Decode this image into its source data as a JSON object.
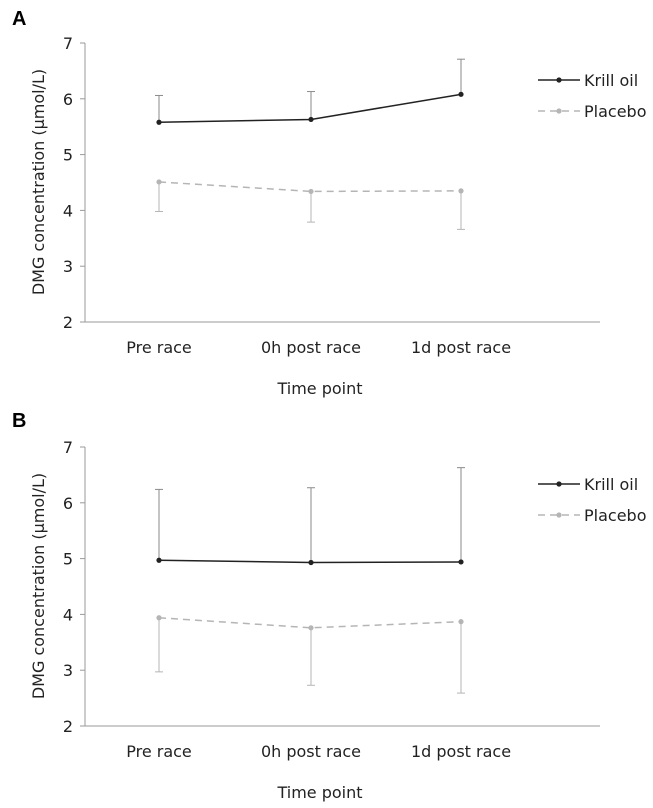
{
  "chart_data": [
    {
      "type": "line",
      "panel_label": "A",
      "categories": [
        "Pre race",
        "0h post race",
        "1d post race"
      ],
      "xlabel": "Time point",
      "ylabel": "DMG concentration (µmol/L)",
      "ylim": [
        2,
        7
      ],
      "yticks": [
        "2",
        "3",
        "4",
        "5",
        "6",
        "7"
      ],
      "legend_position": "top-right",
      "series": [
        {
          "name": "Krill oil",
          "color": "#222222",
          "dash": "solid",
          "values": [
            5.58,
            5.63,
            6.08
          ],
          "err_upper": [
            0.48,
            0.5,
            0.63
          ]
        },
        {
          "name": "Placebo",
          "color": "#b5b5b5",
          "dash": "dashed",
          "values": [
            4.51,
            4.34,
            4.35
          ],
          "err_lower": [
            0.53,
            0.55,
            0.69
          ]
        }
      ]
    },
    {
      "type": "line",
      "panel_label": "B",
      "categories": [
        "Pre race",
        "0h post race",
        "1d post race"
      ],
      "xlabel": "Time point",
      "ylabel": "DMG concentration (µmol/L)",
      "ylim": [
        2,
        7
      ],
      "yticks": [
        "2",
        "3",
        "4",
        "5",
        "6",
        "7"
      ],
      "legend_position": "top-right",
      "series": [
        {
          "name": "Krill oil",
          "color": "#222222",
          "dash": "solid",
          "values": [
            4.97,
            4.93,
            4.94
          ],
          "err_upper": [
            1.27,
            1.34,
            1.69
          ]
        },
        {
          "name": "Placebo",
          "color": "#b5b5b5",
          "dash": "dashed",
          "values": [
            3.94,
            3.76,
            3.87
          ],
          "err_lower": [
            0.97,
            1.03,
            1.28
          ]
        }
      ]
    }
  ]
}
